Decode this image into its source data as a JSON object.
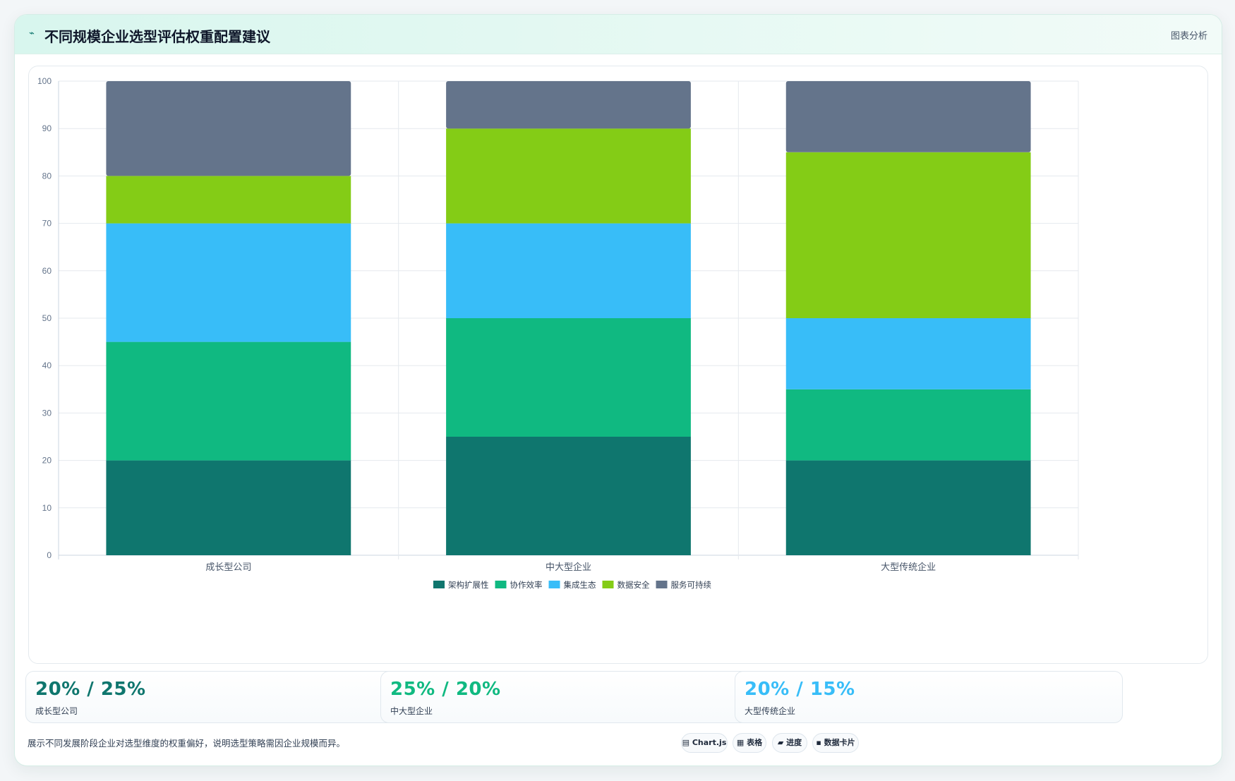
{
  "header": {
    "icon": "chart-line-icon",
    "title": "不同规模企业选型评估权重配置建议",
    "tag": "图表分析"
  },
  "chart_data": {
    "type": "bar",
    "stacked": true,
    "categories": [
      "成长型公司",
      "中大型企业",
      "大型传统企业"
    ],
    "series": [
      {
        "name": "架构扩展性",
        "color": "#0f766e",
        "values": [
          20,
          25,
          20
        ]
      },
      {
        "name": "协作效率",
        "color": "#10b981",
        "values": [
          25,
          25,
          15
        ]
      },
      {
        "name": "集成生态",
        "color": "#38bdf8",
        "values": [
          25,
          20,
          15
        ]
      },
      {
        "name": "数据安全",
        "color": "#84cc16",
        "values": [
          10,
          20,
          35
        ]
      },
      {
        "name": "服务可持续",
        "color": "#64748b",
        "values": [
          20,
          10,
          15
        ]
      }
    ],
    "ylim": [
      0,
      100
    ],
    "yticks": [
      0,
      10,
      20,
      30,
      40,
      50,
      60,
      70,
      80,
      90,
      100
    ],
    "grid": true,
    "legend": "bottom"
  },
  "stats": [
    {
      "value": "20% / 25%",
      "label": "成长型公司",
      "color": "#0f766e"
    },
    {
      "value": "25% / 20%",
      "label": "中大型企业",
      "color": "#10b981"
    },
    {
      "value": "20% / 15%",
      "label": "大型传统企业",
      "color": "#38bdf8"
    }
  ],
  "footnote": "展示不同发展阶段企业对选型维度的权重偏好，说明选型策略需因企业规模而异。",
  "chips": [
    {
      "icon": "chart-icon",
      "label": "Chart.js"
    },
    {
      "icon": "table-icon",
      "label": "表格"
    },
    {
      "icon": "progress-icon",
      "label": "进度"
    },
    {
      "icon": "card-icon",
      "label": "数据卡片"
    }
  ]
}
